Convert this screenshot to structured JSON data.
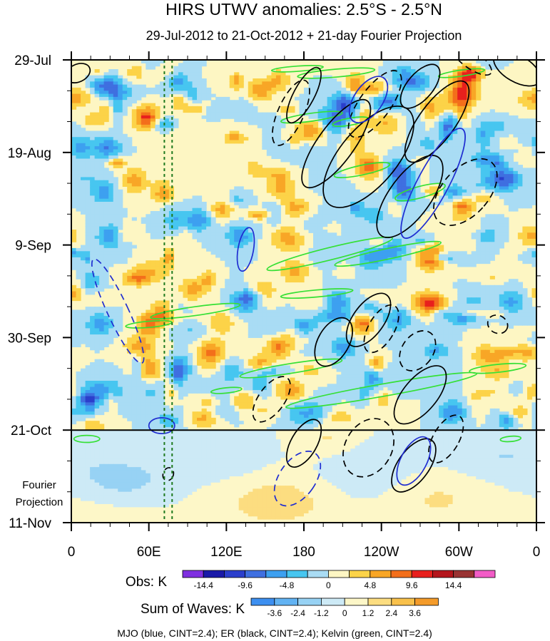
{
  "chart_data": {
    "type": "heatmap",
    "title": "HIRS UTWV anomalies: 2.5°S - 2.5°N",
    "subtitle": "29-Jul-2012 to 21-Oct-2012 + 21-day Fourier Projection",
    "xlabel": "",
    "ylabel": "",
    "x_ticks": [
      {
        "label": "0",
        "lon": 0
      },
      {
        "label": "60E",
        "lon": 60
      },
      {
        "label": "120E",
        "lon": 120
      },
      {
        "label": "180",
        "lon": 180
      },
      {
        "label": "120W",
        "lon": 240
      },
      {
        "label": "60W",
        "lon": 300
      },
      {
        "label": "0",
        "lon": 360
      }
    ],
    "xlim": [
      0,
      360
    ],
    "y_ticks": [
      {
        "label": "29-Jul",
        "day": 0
      },
      {
        "label": "19-Aug",
        "day": 21
      },
      {
        "label": "9-Sep",
        "day": 42
      },
      {
        "label": "30-Sep",
        "day": 63
      },
      {
        "label": "21-Oct",
        "day": 84
      },
      {
        "label": "11-Nov",
        "day": 105
      }
    ],
    "ylim_days": [
      0,
      105
    ],
    "observation_end_day": 84,
    "projection_label": [
      "Fourier",
      "Projection"
    ],
    "reference_longitudes": [
      72,
      78
    ],
    "obs_colorbar": {
      "label": "Obs: K",
      "levels": [
        -14.4,
        -12,
        -9.6,
        -7.2,
        -4.8,
        -2.4,
        0,
        2.4,
        4.8,
        7.2,
        9.6,
        12,
        14.4
      ],
      "tick_labels": [
        "-14.4",
        "-9.6",
        "-4.8",
        "0",
        "4.8",
        "9.6",
        "14.4"
      ],
      "tick_levels": [
        -14.4,
        -9.6,
        -4.8,
        0,
        4.8,
        9.6,
        14.4
      ],
      "colors": [
        "#7f2fe0",
        "#1a1aa8",
        "#2b3fcc",
        "#3f6fe0",
        "#3da0f0",
        "#47c6f0",
        "#a9dcf4",
        "#fdf6c3",
        "#fcd348",
        "#f8a626",
        "#f36f1b",
        "#e8201d",
        "#b4151c",
        "#993333",
        "#f25cc7"
      ]
    },
    "waves_colorbar": {
      "label": "Sum of Waves: K",
      "levels": [
        -3.6,
        -2.4,
        -1.2,
        0,
        1.2,
        2.4,
        3.6
      ],
      "tick_labels": [
        "-3.6",
        "-2.4",
        "-1.2",
        "0",
        "1.2",
        "2.4",
        "3.6"
      ],
      "colors": [
        "#3d8ff0",
        "#62b3f3",
        "#97d2f4",
        "#cdeaf6",
        "#fdf7c8",
        "#fcdd80",
        "#f9c14b",
        "#f49b2a"
      ]
    },
    "series": [
      {
        "name": "MJO",
        "color": "#1f2dd1",
        "contour_interval": 2.4
      },
      {
        "name": "ER",
        "color": "#000000",
        "contour_interval": 2.4
      },
      {
        "name": "Kelvin",
        "color": "#35e035",
        "contour_interval": 2.4
      }
    ],
    "caption": "MJO (blue, CINT=2.4); ER (black, CINT=2.4); Kelvin (green, CINT=2.4)"
  }
}
